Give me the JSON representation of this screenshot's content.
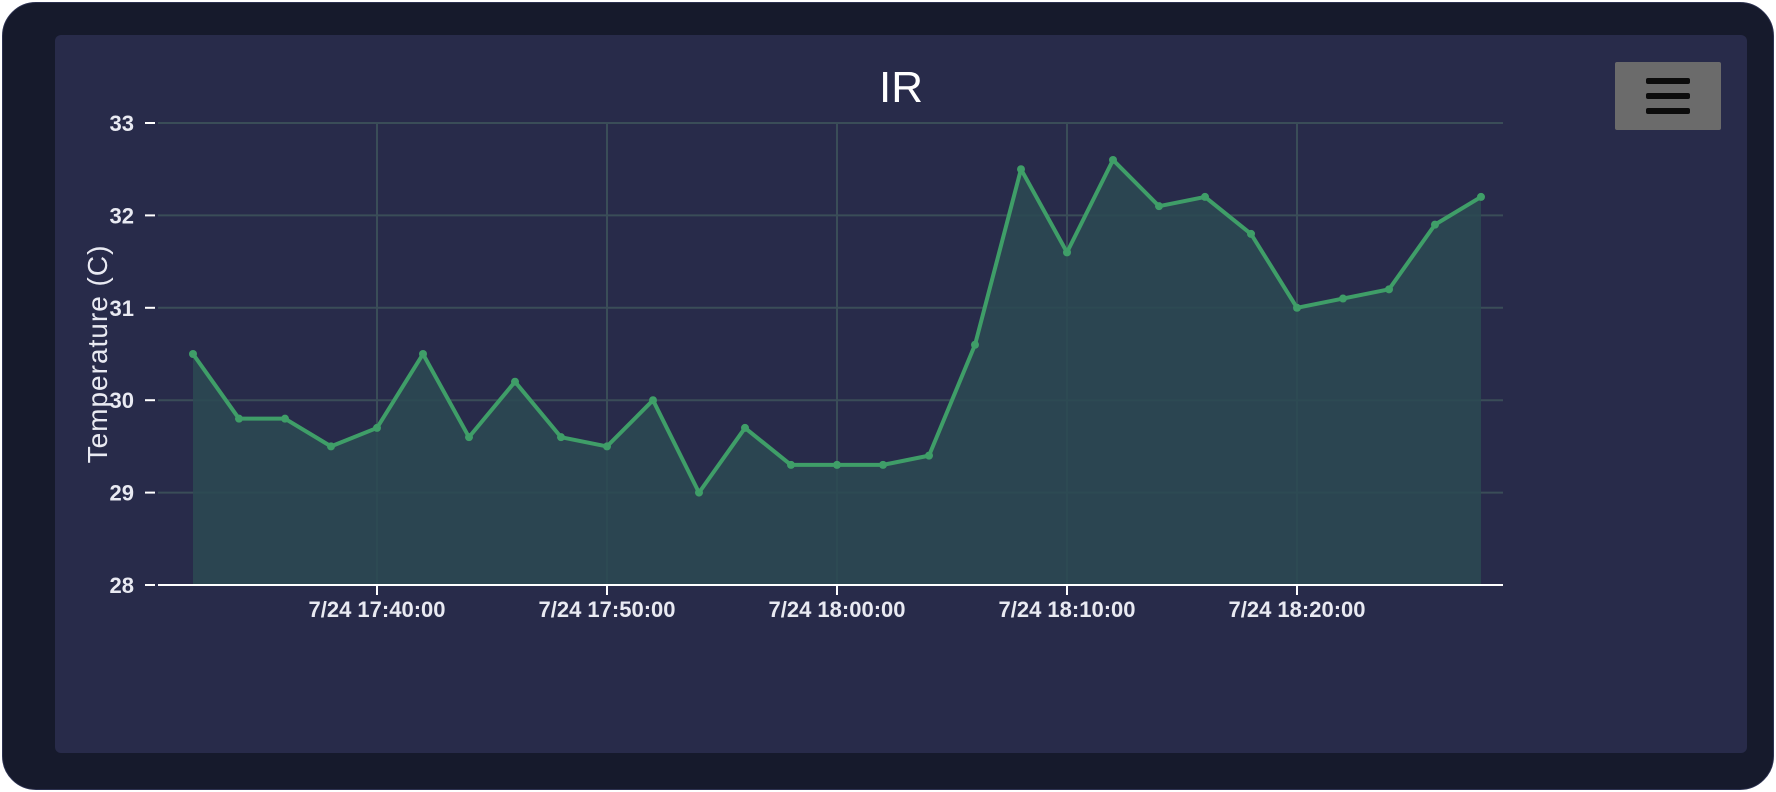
{
  "chart_data": {
    "type": "area",
    "title": "IR",
    "ylabel": "Temperature (C)",
    "xlabel": "",
    "ylim": [
      28,
      33
    ],
    "yticks": [
      28,
      29,
      30,
      31,
      32,
      33
    ],
    "x_range": [
      "7/24 17:32:00",
      "7/24 18:28:00"
    ],
    "xticks": [
      "7/24 17:40:00",
      "7/24 17:50:00",
      "7/24 18:00:00",
      "7/24 18:10:00",
      "7/24 18:20:00"
    ],
    "grid": true,
    "series": [
      {
        "x": [
          "7/24 17:32:00",
          "7/24 17:34:00",
          "7/24 17:36:00",
          "7/24 17:38:00",
          "7/24 17:40:00",
          "7/24 17:42:00",
          "7/24 17:44:00",
          "7/24 17:46:00",
          "7/24 17:48:00",
          "7/24 17:50:00",
          "7/24 17:52:00",
          "7/24 17:54:00",
          "7/24 17:56:00",
          "7/24 17:58:00",
          "7/24 18:00:00",
          "7/24 18:02:00",
          "7/24 18:04:00",
          "7/24 18:06:00",
          "7/24 18:08:00",
          "7/24 18:10:00",
          "7/24 18:12:00",
          "7/24 18:14:00",
          "7/24 18:16:00",
          "7/24 18:18:00",
          "7/24 18:20:00",
          "7/24 18:22:00",
          "7/24 18:24:00",
          "7/24 18:26:00",
          "7/24 18:28:00"
        ],
        "values": [
          30.5,
          29.8,
          29.8,
          29.5,
          29.7,
          30.5,
          29.6,
          30.2,
          29.6,
          29.5,
          30.0,
          29.0,
          29.7,
          29.3,
          29.3,
          29.3,
          29.4,
          30.6,
          32.5,
          31.6,
          32.6,
          32.1,
          32.2,
          31.8,
          31.0,
          31.1,
          31.2,
          31.9,
          32.2
        ]
      }
    ]
  },
  "colors": {
    "line": "#3f9e68",
    "fill": "#2b4a52",
    "grid": "#3a4d58",
    "axis": "#ffffff",
    "background": "#282b4a"
  },
  "menu": {
    "icon": "hamburger-menu-icon"
  }
}
